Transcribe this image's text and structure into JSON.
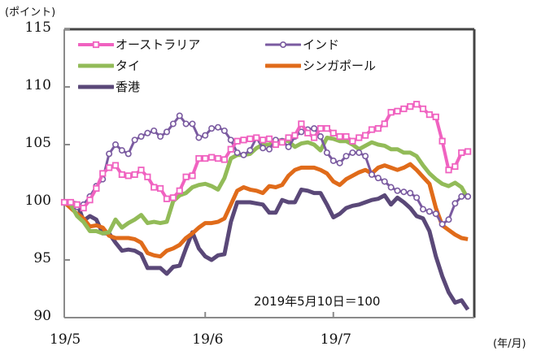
{
  "chart_data": {
    "type": "line",
    "title": "",
    "ylabel": "(ポイント)",
    "xlabel": "(年/月)",
    "ylim": [
      90,
      115
    ],
    "yticks": [
      90,
      95,
      100,
      105,
      110,
      115
    ],
    "xlim": [
      0,
      64
    ],
    "xticks": [
      {
        "index": 0,
        "label": "19/5"
      },
      {
        "index": 22,
        "label": "19/6"
      },
      {
        "index": 42,
        "label": "19/7"
      }
    ],
    "annotation": "2019年5月10日＝100",
    "legend": "top-left",
    "series": [
      {
        "name": "オーストラリア",
        "color": "#f062c0",
        "marker": "square",
        "values": [
          100,
          100,
          99.8,
          99.5,
          100.2,
          101.2,
          102.5,
          103,
          103.2,
          102.4,
          102.3,
          102.4,
          102.8,
          102.2,
          101.3,
          101.2,
          100.3,
          100.4,
          101,
          102.2,
          102.3,
          103.8,
          103.8,
          103.9,
          103.8,
          103.7,
          104.6,
          105.3,
          105.4,
          105.5,
          105.6,
          105.4,
          105.5,
          105,
          105.2,
          105.6,
          105.8,
          106.8,
          106,
          105.6,
          106.4,
          106.4,
          106,
          105.7,
          105.7,
          105.3,
          105.6,
          105.8,
          106.3,
          106.4,
          106.8,
          107.8,
          107.9,
          108.1,
          108.3,
          108.5,
          108.1,
          107.6,
          107.4,
          105.3,
          102.8,
          103.1,
          104.3,
          104.4
        ]
      },
      {
        "name": "インド",
        "color": "#7a5aa0",
        "marker": "circle",
        "values": [
          100,
          100,
          99.6,
          99.8,
          100.5,
          101.4,
          102,
          104.2,
          105,
          104.5,
          104.2,
          105.4,
          105.7,
          106,
          106.2,
          105.7,
          106.1,
          106.8,
          107.5,
          106.8,
          106.8,
          105.6,
          105.8,
          106.4,
          106.5,
          106.2,
          105.4,
          104.3,
          104.1,
          104.5,
          105.6,
          104.7,
          104.6,
          105.4,
          105.3,
          104.8,
          105.7,
          106.1,
          106.3,
          106.4,
          105.7,
          104.3,
          103.6,
          103.4,
          104,
          104.3,
          104.3,
          104,
          102.4,
          102.1,
          101.8,
          101.3,
          101,
          100.9,
          100.8,
          100.4,
          99.4,
          99.2,
          99,
          98.1,
          98.5,
          99.9,
          100.5,
          100.5
        ]
      },
      {
        "name": "タイ",
        "color": "#92bb58",
        "marker": "none",
        "values": [
          100,
          99.8,
          98.8,
          98.3,
          97.5,
          97.5,
          97.3,
          97.4,
          98.5,
          97.8,
          98.2,
          98.5,
          98.9,
          98.2,
          98.3,
          98.2,
          98.3,
          100.1,
          100.6,
          100.8,
          101.3,
          101.5,
          101.6,
          101.4,
          101.1,
          102.1,
          103.8,
          104.1,
          104.1,
          104.2,
          104.7,
          105,
          105,
          105.3,
          105.4,
          105.3,
          104.8,
          105.1,
          105.2,
          105,
          104.5,
          105.6,
          105.5,
          105.3,
          105.3,
          105,
          104.6,
          104.9,
          105.2,
          105,
          104.9,
          104.6,
          104.6,
          104.3,
          104.3,
          104,
          103.2,
          102.5,
          102,
          101.6,
          101.4,
          101.7,
          101.3,
          100.3
        ]
      },
      {
        "name": "シンガポール",
        "color": "#e06b1a",
        "marker": "none",
        "values": [
          100,
          99.5,
          99,
          98.6,
          97.9,
          98,
          97.8,
          97.1,
          96.9,
          96.9,
          96.9,
          96.8,
          96.5,
          95.6,
          95.4,
          95.3,
          95.8,
          96,
          96.3,
          96.9,
          97.3,
          97.8,
          98.2,
          98.2,
          98.3,
          98.6,
          99.8,
          101,
          101.3,
          101.1,
          101,
          100.8,
          101.4,
          101.3,
          101.5,
          102.3,
          102.8,
          103,
          103,
          103,
          102.8,
          102.5,
          101.8,
          101.5,
          102,
          102.3,
          102.6,
          102.8,
          102.5,
          103,
          103.2,
          103,
          102.8,
          103,
          103.3,
          102.8,
          102.2,
          101.6,
          99.5,
          98,
          97.6,
          97.2,
          96.9,
          96.8
        ]
      },
      {
        "name": "香港",
        "color": "#5a4878",
        "marker": "none",
        "values": [
          100,
          100,
          99.9,
          98.4,
          98.8,
          98.5,
          97.3,
          97.3,
          96.5,
          95.8,
          95.9,
          95.8,
          95.5,
          94.3,
          94.3,
          94.3,
          93.8,
          94.4,
          94.5,
          96,
          97.4,
          96,
          95.3,
          95,
          95.4,
          95.5,
          98.3,
          100,
          100,
          100,
          99.9,
          99.8,
          99.1,
          99.1,
          100.2,
          100,
          100,
          101.1,
          101,
          100.8,
          100.8,
          99.8,
          98.7,
          99,
          99.5,
          99.7,
          99.8,
          100,
          100.2,
          100.3,
          100.6,
          99.8,
          100.4,
          100,
          99.5,
          98.8,
          98.6,
          97.5,
          95.3,
          93.6,
          92.2,
          91.3,
          91.5,
          90.7
        ]
      }
    ]
  }
}
